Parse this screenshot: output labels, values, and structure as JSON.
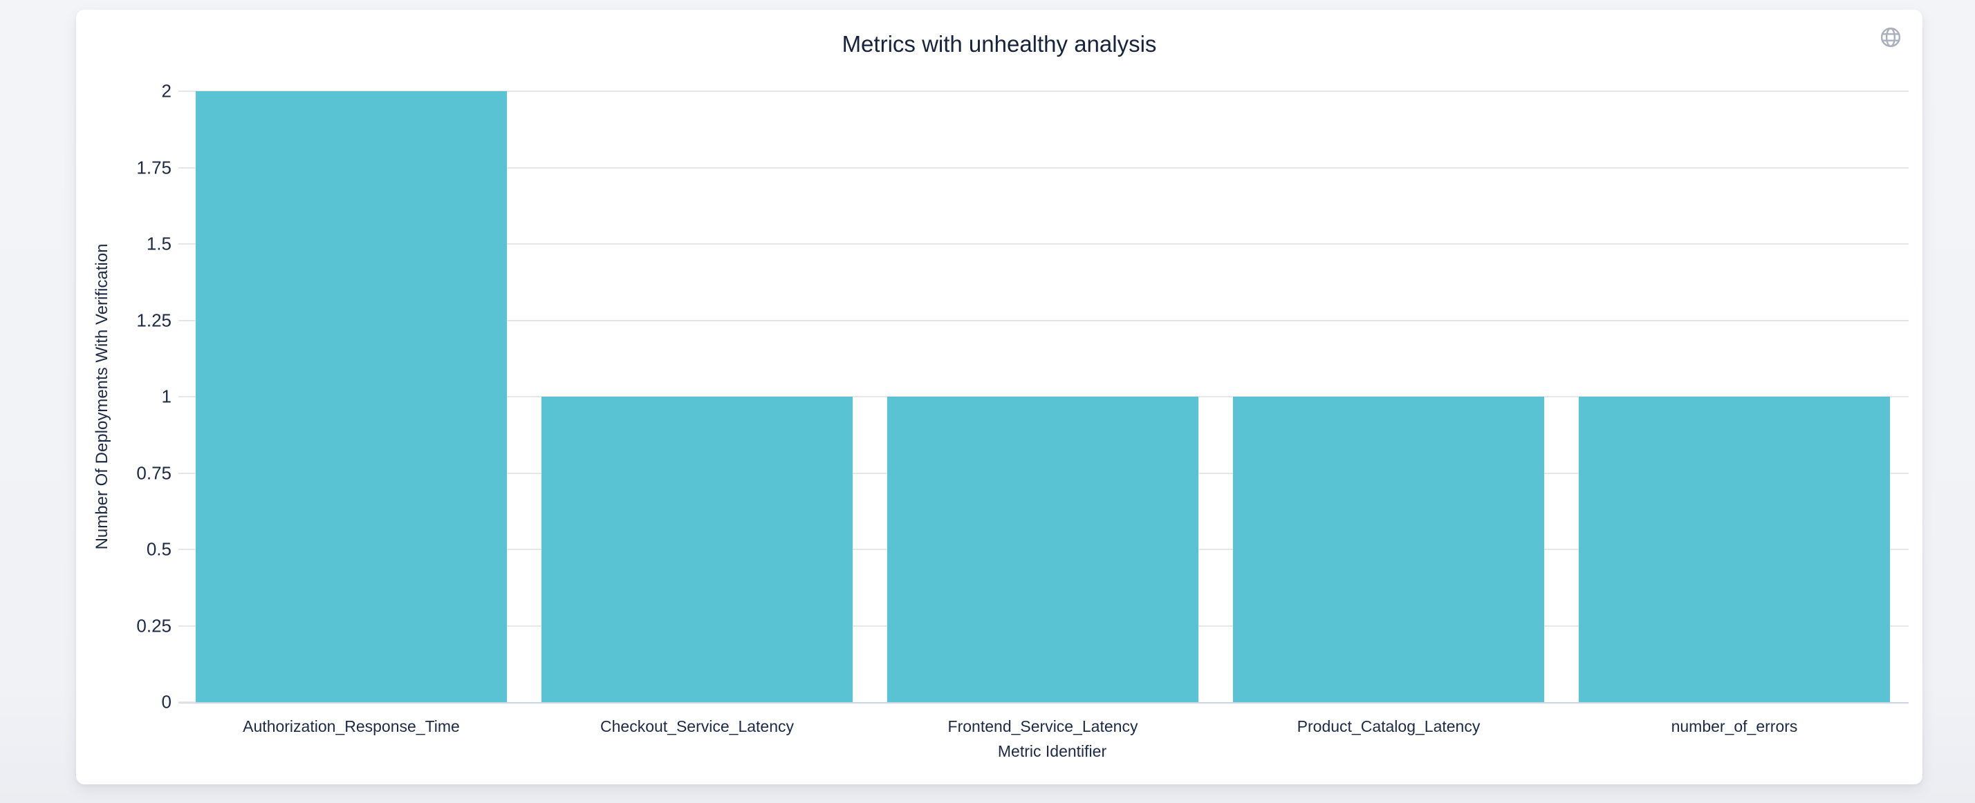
{
  "header": {
    "title": "Metrics with unhealthy analysis",
    "globe_icon": "globe-icon"
  },
  "chart_data": {
    "type": "bar",
    "title": "Metrics with unhealthy analysis",
    "categories": [
      "Authorization_Response_Time",
      "Checkout_Service_Latency",
      "Frontend_Service_Latency",
      "Product_Catalog_Latency",
      "number_of_errors"
    ],
    "values": [
      2,
      1,
      1,
      1,
      1
    ],
    "xlabel": "Metric Identifier",
    "ylabel": "Number Of Deployments With Verification",
    "ylim": [
      0,
      2
    ],
    "ytick_labels": [
      "0",
      "0.25",
      "0.5",
      "0.75",
      "1",
      "1.25",
      "1.5",
      "1.75",
      "2"
    ],
    "grid": "horizontal",
    "legend": "none",
    "bar_color": "#5ac3d3"
  },
  "colors": {
    "page_background": "#f1f3f6",
    "card_background": "#ffffff",
    "bar": "#5ac3d3",
    "gridline": "#e6e6e6",
    "x_axis_line": "#ccd6eb",
    "text": "#1c2a44",
    "globe_icon": "#a9afbb"
  }
}
